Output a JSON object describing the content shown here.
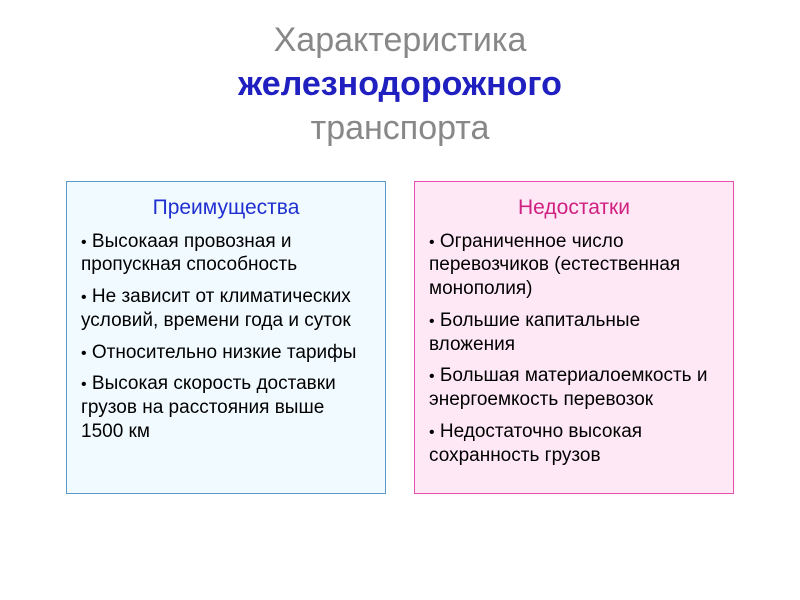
{
  "title": {
    "line1": "Характеристика",
    "line2": "железнодорожного",
    "line3": "транспорта"
  },
  "colors": {
    "title_gray": "#888888",
    "title_blue": "#2020c0",
    "left_bg": "#f0faff",
    "left_border": "#5a9ac8",
    "left_header": "#2030d0",
    "right_bg": "#ffe8f6",
    "right_border": "#e850b0",
    "right_header": "#d02080",
    "text": "#000000"
  },
  "fonts": {
    "title_size": 34,
    "header_size": 21,
    "item_size": 19
  },
  "left": {
    "header": "Преимущества",
    "items": [
      "Высокаая провозная и пропускная способность",
      "Не зависит от климатических условий, времени года и суток",
      "Относительно низкие тарифы",
      "Высокая скорость доставки грузов на расстояния выше 1500 км"
    ]
  },
  "right": {
    "header": "Недостатки",
    "items": [
      "Ограниченное число перевозчиков (естественная монополия)",
      "Большие капитальные вложения",
      "Большая материалоемкость и энергоемкость перевозок",
      "Недостаточно высокая сохранность грузов"
    ]
  }
}
